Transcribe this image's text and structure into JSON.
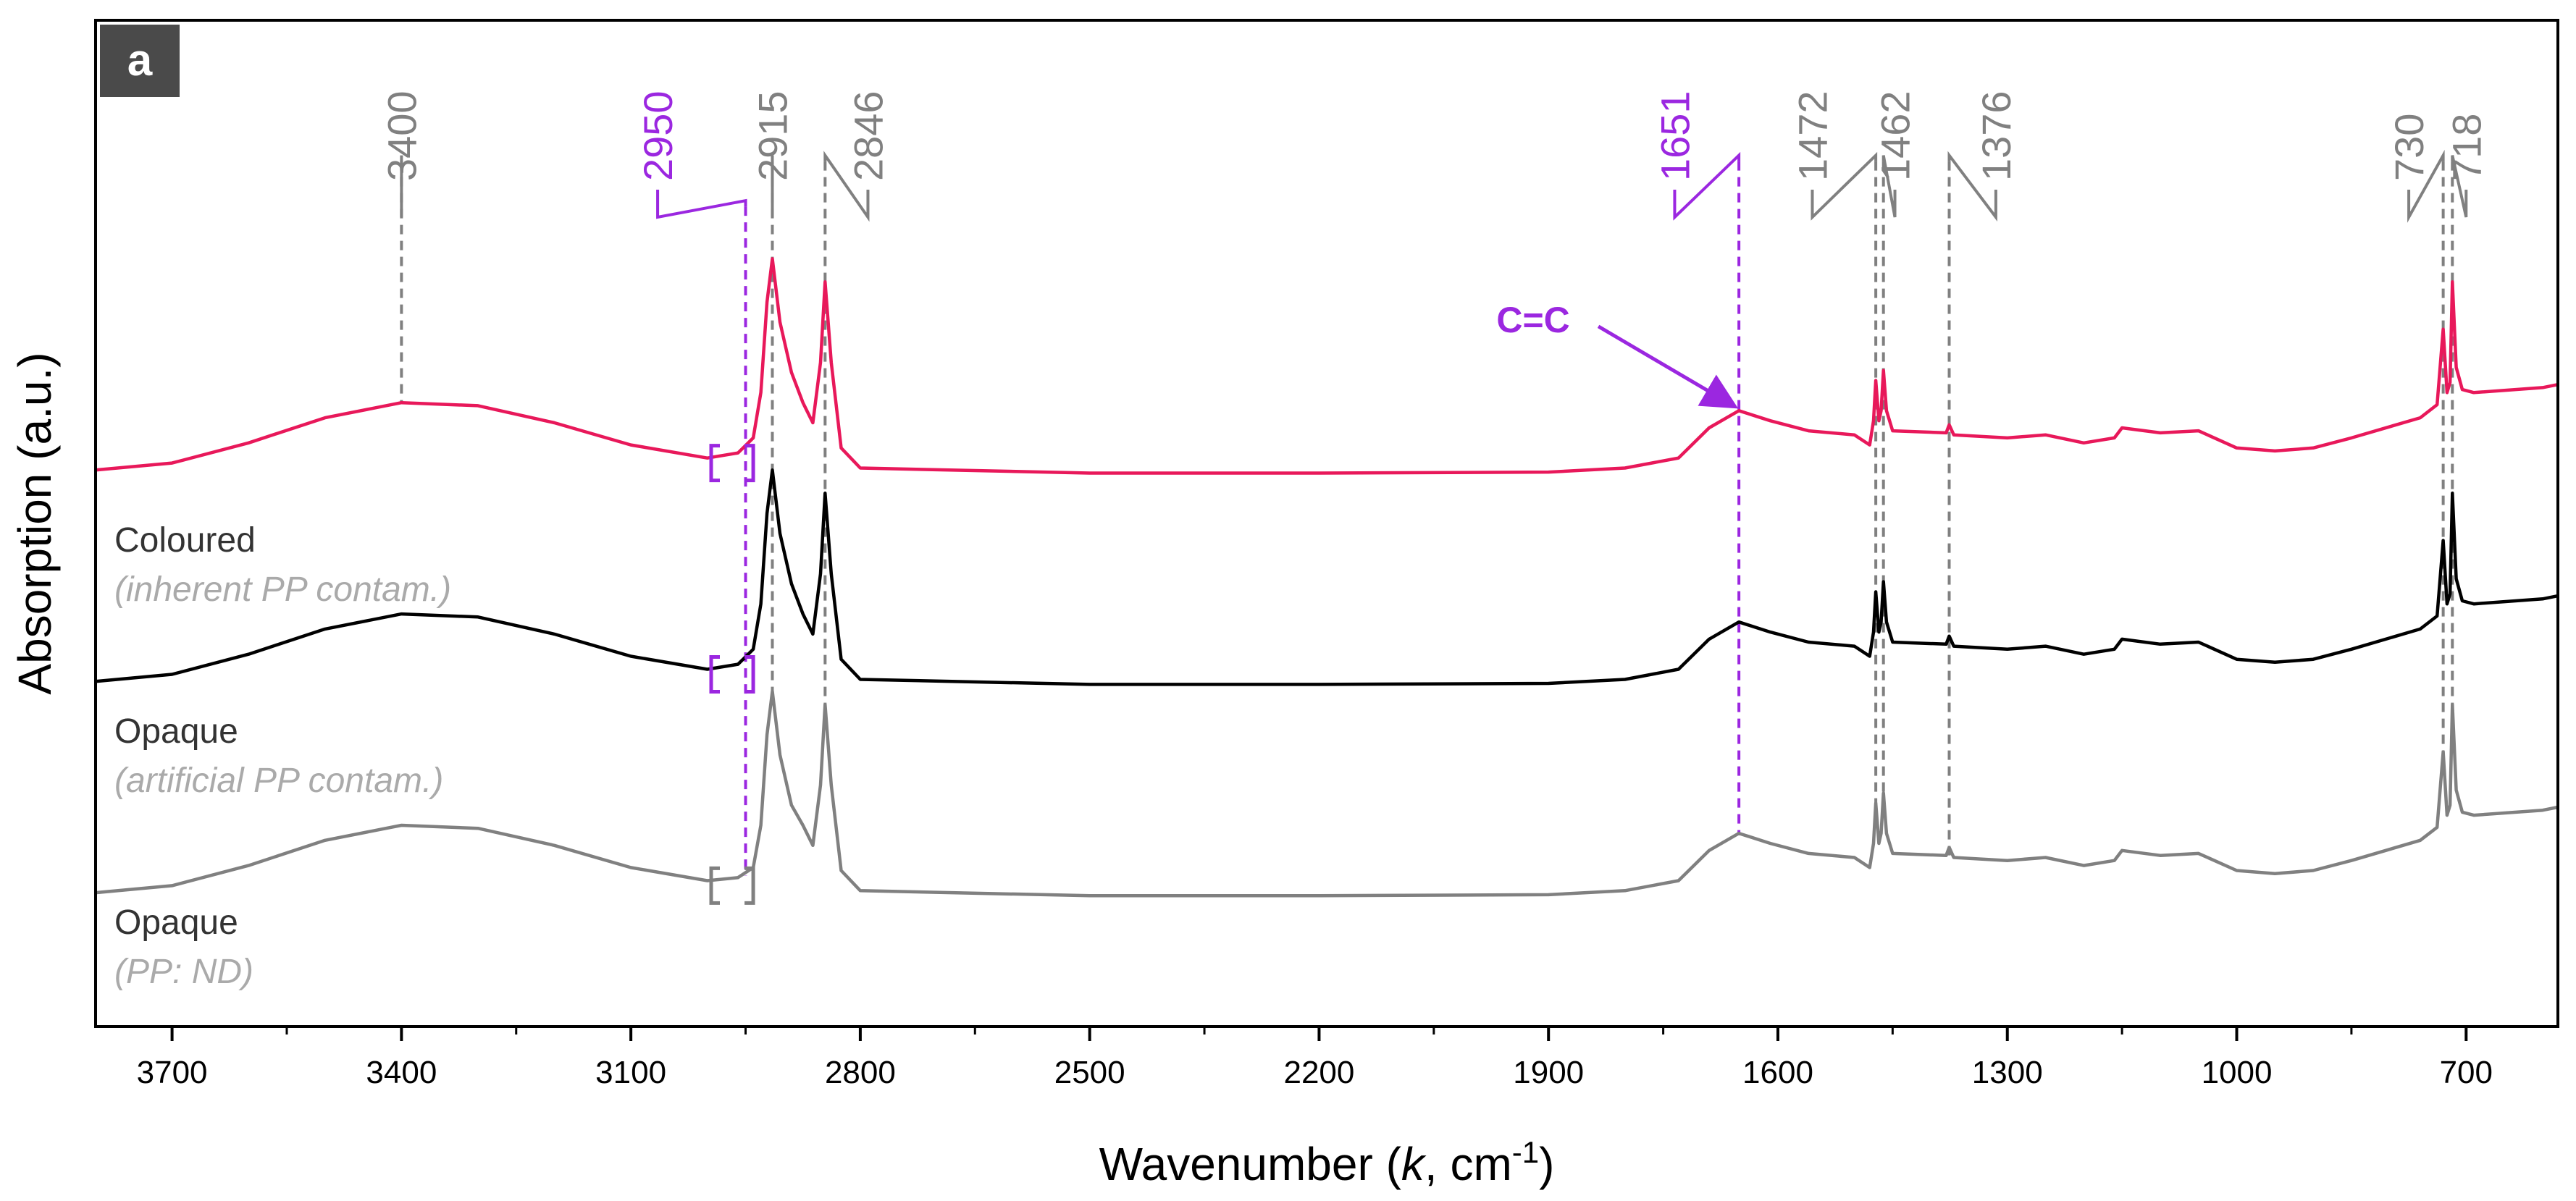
{
  "colors": {
    "coloured": "#e8185a",
    "opaque_artificial": "#000000",
    "opaque_nd": "#808080",
    "highlight": "#9b27e0",
    "guide": "#808080",
    "panel_badge_bg": "#4a4a4a"
  },
  "panel_label": "a",
  "chart_data": {
    "type": "line",
    "title": "",
    "xlabel_prefix": "Wavenumber (",
    "xlabel_var": "k",
    "xlabel_unit": ", cm",
    "xlabel_sup": "-1",
    "xlabel_suffix": ")",
    "ylabel": "Absorption (a.u.)",
    "xlim": [
      3800,
      580
    ],
    "ylim": [
      0,
      1
    ],
    "x_ticks": [
      3700,
      3400,
      3100,
      2800,
      2500,
      2200,
      1900,
      1600,
      1300,
      1000,
      700
    ],
    "x_minor_step": 150,
    "series": [
      {
        "name": "Coloured",
        "note": "(inherent PP contam.)",
        "color_key": "coloured",
        "points": [
          [
            3800,
            0.553
          ],
          [
            3700,
            0.56
          ],
          [
            3600,
            0.58
          ],
          [
            3500,
            0.605
          ],
          [
            3400,
            0.62
          ],
          [
            3300,
            0.617
          ],
          [
            3200,
            0.6
          ],
          [
            3100,
            0.578
          ],
          [
            3000,
            0.565
          ],
          [
            2960,
            0.57
          ],
          [
            2940,
            0.585
          ],
          [
            2930,
            0.63
          ],
          [
            2922,
            0.72
          ],
          [
            2915,
            0.763
          ],
          [
            2905,
            0.7
          ],
          [
            2890,
            0.65
          ],
          [
            2875,
            0.62
          ],
          [
            2862,
            0.6
          ],
          [
            2852,
            0.66
          ],
          [
            2846,
            0.74
          ],
          [
            2838,
            0.66
          ],
          [
            2825,
            0.575
          ],
          [
            2800,
            0.555
          ],
          [
            2500,
            0.55
          ],
          [
            2200,
            0.55
          ],
          [
            1900,
            0.551
          ],
          [
            1800,
            0.555
          ],
          [
            1730,
            0.565
          ],
          [
            1690,
            0.595
          ],
          [
            1651,
            0.612
          ],
          [
            1610,
            0.602
          ],
          [
            1560,
            0.592
          ],
          [
            1500,
            0.588
          ],
          [
            1480,
            0.578
          ],
          [
            1475,
            0.602
          ],
          [
            1472,
            0.642
          ],
          [
            1468,
            0.602
          ],
          [
            1465,
            0.612
          ],
          [
            1462,
            0.652
          ],
          [
            1458,
            0.612
          ],
          [
            1450,
            0.592
          ],
          [
            1380,
            0.59
          ],
          [
            1376,
            0.598
          ],
          [
            1370,
            0.588
          ],
          [
            1300,
            0.585
          ],
          [
            1250,
            0.588
          ],
          [
            1200,
            0.58
          ],
          [
            1160,
            0.585
          ],
          [
            1150,
            0.595
          ],
          [
            1100,
            0.59
          ],
          [
            1050,
            0.592
          ],
          [
            1000,
            0.575
          ],
          [
            950,
            0.572
          ],
          [
            900,
            0.575
          ],
          [
            850,
            0.585
          ],
          [
            760,
            0.605
          ],
          [
            738,
            0.618
          ],
          [
            730,
            0.693
          ],
          [
            725,
            0.63
          ],
          [
            721,
            0.64
          ],
          [
            718,
            0.74
          ],
          [
            713,
            0.655
          ],
          [
            705,
            0.633
          ],
          [
            690,
            0.63
          ],
          [
            600,
            0.635
          ],
          [
            580,
            0.638
          ]
        ]
      },
      {
        "name": "Opaque",
        "note": "(artificial PP contam.)",
        "color_key": "opaque_artificial",
        "points": [
          [
            3800,
            0.343
          ],
          [
            3700,
            0.35
          ],
          [
            3600,
            0.37
          ],
          [
            3500,
            0.395
          ],
          [
            3400,
            0.41
          ],
          [
            3300,
            0.407
          ],
          [
            3200,
            0.39
          ],
          [
            3100,
            0.368
          ],
          [
            3000,
            0.355
          ],
          [
            2960,
            0.36
          ],
          [
            2940,
            0.375
          ],
          [
            2930,
            0.42
          ],
          [
            2922,
            0.51
          ],
          [
            2915,
            0.553
          ],
          [
            2905,
            0.49
          ],
          [
            2890,
            0.44
          ],
          [
            2875,
            0.41
          ],
          [
            2862,
            0.39
          ],
          [
            2852,
            0.45
          ],
          [
            2846,
            0.53
          ],
          [
            2838,
            0.45
          ],
          [
            2825,
            0.365
          ],
          [
            2800,
            0.345
          ],
          [
            2500,
            0.34
          ],
          [
            2200,
            0.34
          ],
          [
            1900,
            0.341
          ],
          [
            1800,
            0.345
          ],
          [
            1730,
            0.355
          ],
          [
            1690,
            0.385
          ],
          [
            1651,
            0.402
          ],
          [
            1610,
            0.392
          ],
          [
            1560,
            0.382
          ],
          [
            1500,
            0.378
          ],
          [
            1480,
            0.368
          ],
          [
            1475,
            0.392
          ],
          [
            1472,
            0.432
          ],
          [
            1468,
            0.392
          ],
          [
            1465,
            0.402
          ],
          [
            1462,
            0.442
          ],
          [
            1458,
            0.402
          ],
          [
            1450,
            0.382
          ],
          [
            1380,
            0.38
          ],
          [
            1376,
            0.388
          ],
          [
            1370,
            0.378
          ],
          [
            1300,
            0.375
          ],
          [
            1250,
            0.378
          ],
          [
            1200,
            0.37
          ],
          [
            1160,
            0.375
          ],
          [
            1150,
            0.385
          ],
          [
            1100,
            0.38
          ],
          [
            1050,
            0.382
          ],
          [
            1000,
            0.365
          ],
          [
            950,
            0.362
          ],
          [
            900,
            0.365
          ],
          [
            850,
            0.375
          ],
          [
            760,
            0.395
          ],
          [
            738,
            0.408
          ],
          [
            730,
            0.483
          ],
          [
            725,
            0.42
          ],
          [
            721,
            0.43
          ],
          [
            718,
            0.53
          ],
          [
            713,
            0.445
          ],
          [
            705,
            0.423
          ],
          [
            690,
            0.42
          ],
          [
            600,
            0.425
          ],
          [
            580,
            0.428
          ]
        ]
      },
      {
        "name": "Opaque",
        "note": "(PP: ND)",
        "color_key": "opaque_nd",
        "points": [
          [
            3800,
            0.133
          ],
          [
            3700,
            0.14
          ],
          [
            3600,
            0.16
          ],
          [
            3500,
            0.185
          ],
          [
            3400,
            0.2
          ],
          [
            3300,
            0.197
          ],
          [
            3200,
            0.18
          ],
          [
            3100,
            0.158
          ],
          [
            3000,
            0.145
          ],
          [
            2960,
            0.148
          ],
          [
            2940,
            0.158
          ],
          [
            2930,
            0.2
          ],
          [
            2922,
            0.29
          ],
          [
            2915,
            0.333
          ],
          [
            2905,
            0.27
          ],
          [
            2890,
            0.22
          ],
          [
            2875,
            0.2
          ],
          [
            2862,
            0.18
          ],
          [
            2852,
            0.24
          ],
          [
            2846,
            0.32
          ],
          [
            2838,
            0.24
          ],
          [
            2825,
            0.155
          ],
          [
            2800,
            0.135
          ],
          [
            2500,
            0.13
          ],
          [
            2200,
            0.13
          ],
          [
            1900,
            0.131
          ],
          [
            1800,
            0.135
          ],
          [
            1730,
            0.145
          ],
          [
            1690,
            0.175
          ],
          [
            1651,
            0.192
          ],
          [
            1610,
            0.182
          ],
          [
            1560,
            0.172
          ],
          [
            1500,
            0.168
          ],
          [
            1480,
            0.158
          ],
          [
            1475,
            0.182
          ],
          [
            1472,
            0.222
          ],
          [
            1468,
            0.182
          ],
          [
            1465,
            0.192
          ],
          [
            1462,
            0.232
          ],
          [
            1458,
            0.192
          ],
          [
            1450,
            0.172
          ],
          [
            1380,
            0.17
          ],
          [
            1376,
            0.178
          ],
          [
            1370,
            0.168
          ],
          [
            1300,
            0.165
          ],
          [
            1250,
            0.168
          ],
          [
            1200,
            0.16
          ],
          [
            1160,
            0.165
          ],
          [
            1150,
            0.175
          ],
          [
            1100,
            0.17
          ],
          [
            1050,
            0.172
          ],
          [
            1000,
            0.155
          ],
          [
            950,
            0.152
          ],
          [
            900,
            0.155
          ],
          [
            850,
            0.165
          ],
          [
            760,
            0.185
          ],
          [
            738,
            0.198
          ],
          [
            730,
            0.273
          ],
          [
            725,
            0.21
          ],
          [
            721,
            0.22
          ],
          [
            718,
            0.32
          ],
          [
            713,
            0.235
          ],
          [
            705,
            0.213
          ],
          [
            690,
            0.21
          ],
          [
            600,
            0.215
          ],
          [
            580,
            0.218
          ]
        ]
      }
    ],
    "peaks": [
      {
        "label": "3400",
        "x": 3400,
        "label_x": 3400,
        "highlight": false,
        "line_top": 0.86,
        "line_bottom": 0.62
      },
      {
        "label": "2950",
        "x": 2950,
        "label_x": 3065,
        "highlight": true,
        "line_top": 0.815,
        "line_bottom": 0.15
      },
      {
        "label": "2915",
        "x": 2915,
        "label_x": 2915,
        "highlight": false,
        "line_top": 0.86,
        "line_bottom": 0.33
      },
      {
        "label": "2846",
        "x": 2846,
        "label_x": 2790,
        "highlight": false,
        "line_top": 0.86,
        "line_bottom": 0.32
      },
      {
        "label": "1651",
        "x": 1651,
        "label_x": 1735,
        "highlight": true,
        "line_top": 0.86,
        "line_bottom": 0.19
      },
      {
        "label": "1472",
        "x": 1472,
        "label_x": 1555,
        "highlight": false,
        "line_top": 0.86,
        "line_bottom": 0.22
      },
      {
        "label": "1462",
        "x": 1462,
        "label_x": 1447,
        "highlight": false,
        "line_top": 0.86,
        "line_bottom": 0.23
      },
      {
        "label": "1376",
        "x": 1376,
        "label_x": 1315,
        "highlight": false,
        "line_top": 0.86,
        "line_bottom": 0.17
      },
      {
        "label": "730",
        "x": 730,
        "label_x": 775,
        "highlight": false,
        "line_top": 0.86,
        "line_bottom": 0.27
      },
      {
        "label": "718",
        "x": 718,
        "label_x": 700,
        "highlight": false,
        "line_top": 0.86,
        "line_bottom": 0.32
      }
    ],
    "annotations": [
      {
        "text": "C=C",
        "color_key": "highlight",
        "text_x": 1920,
        "text_y": 0.69,
        "arrow_to_x": 1660,
        "arrow_to_y": 0.612
      }
    ],
    "brackets": [
      {
        "x_left": 2995,
        "x_right": 2940,
        "y": 0.56,
        "color_key": "highlight"
      },
      {
        "x_left": 2995,
        "x_right": 2940,
        "y": 0.35,
        "color_key": "highlight"
      },
      {
        "x_left": 2995,
        "x_right": 2940,
        "y": 0.14,
        "color_key": "opaque_nd"
      }
    ]
  }
}
